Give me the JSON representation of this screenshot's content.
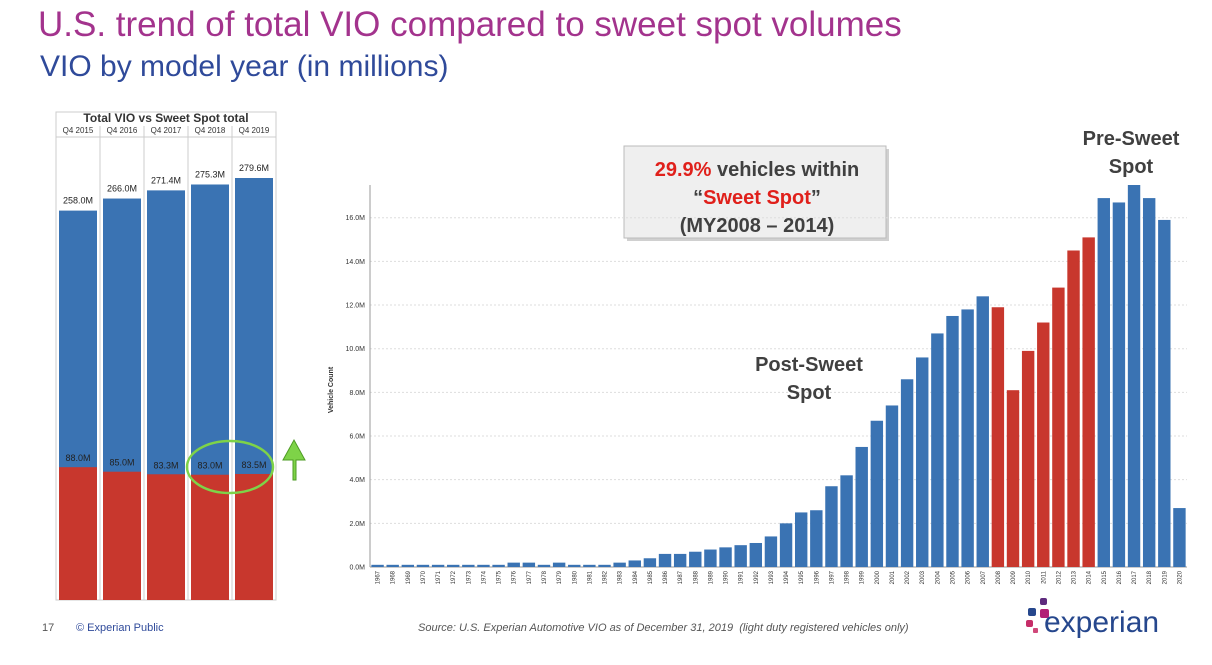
{
  "slide": {
    "title": "U.S. trend of total VIO compared to sweet spot volumes",
    "subtitle": "VIO by model year (in millions)",
    "page": "17",
    "footer": "© Experian Public",
    "source": "Source: U.S. Experian Automotive VIO as of December 31, 2019  (light duty registered vehicles only)",
    "logo": "experian"
  },
  "chart_data": [
    {
      "type": "overlaid_bar",
      "title": "Total VIO vs Sweet Spot total",
      "categories": [
        "Q4 2015",
        "Q4 2016",
        "Q4 2017",
        "Q4 2018",
        "Q4 2019"
      ],
      "series": [
        {
          "color": "#3a73b3",
          "values": [
            258.0,
            266.0,
            271.4,
            275.3,
            279.6
          ],
          "value_labels": [
            "258.0M",
            "266.0M",
            "271.4M",
            "275.3M",
            "279.6M"
          ]
        },
        {
          "color": "#c8372d",
          "values": [
            88.0,
            85.0,
            83.3,
            83.0,
            83.5
          ],
          "value_labels": [
            "88.0M",
            "85.0M",
            "83.3M",
            "83.0M",
            "83.5M"
          ]
        }
      ]
    },
    {
      "type": "bar",
      "ylabel": "Vehicle Count",
      "categories": [
        "1967",
        "1968",
        "1969",
        "1970",
        "1971",
        "1972",
        "1973",
        "1974",
        "1975",
        "1976",
        "1977",
        "1978",
        "1979",
        "1980",
        "1981",
        "1982",
        "1983",
        "1984",
        "1985",
        "1986",
        "1987",
        "1988",
        "1989",
        "1990",
        "1991",
        "1992",
        "1993",
        "1994",
        "1995",
        "1996",
        "1997",
        "1998",
        "1999",
        "2000",
        "2001",
        "2002",
        "2003",
        "2004",
        "2005",
        "2006",
        "2007",
        "2008",
        "2009",
        "2010",
        "2011",
        "2012",
        "2013",
        "2014",
        "2015",
        "2016",
        "2017",
        "2018",
        "2019",
        "2020"
      ],
      "values": [
        0.1,
        0.1,
        0.1,
        0.1,
        0.1,
        0.1,
        0.1,
        0.1,
        0.1,
        0.2,
        0.2,
        0.1,
        0.2,
        0.1,
        0.1,
        0.1,
        0.2,
        0.3,
        0.4,
        0.6,
        0.6,
        0.7,
        0.8,
        0.9,
        1.0,
        1.1,
        1.4,
        2.0,
        2.5,
        2.6,
        3.7,
        4.2,
        5.5,
        6.7,
        7.4,
        8.6,
        9.6,
        10.7,
        11.5,
        11.8,
        12.4,
        11.9,
        8.1,
        9.9,
        11.2,
        12.8,
        14.5,
        15.1,
        16.9,
        16.7,
        17.5,
        16.9,
        15.9,
        2.7
      ],
      "color": "#3a73b3",
      "highlight_color": "#c8372d",
      "highlight_categories": [
        "2008",
        "2009",
        "2010",
        "2011",
        "2012",
        "2013",
        "2014"
      ],
      "ylim": [
        0,
        17.5
      ],
      "yticks": [
        {
          "value": 0,
          "label": "0.0M"
        },
        {
          "value": 2,
          "label": "2.0M"
        },
        {
          "value": 4,
          "label": "4.0M"
        },
        {
          "value": 6,
          "label": "6.0M"
        },
        {
          "value": 8,
          "label": "8.0M"
        },
        {
          "value": 10,
          "label": "10.0M"
        },
        {
          "value": 12,
          "label": "12.0M"
        },
        {
          "value": 14,
          "label": "14.0M"
        },
        {
          "value": 16,
          "label": "16.0M"
        }
      ],
      "grid": true,
      "callout": [
        [
          {
            "text": "29.9%",
            "color": "#e0201b"
          },
          {
            "text": " vehicles within"
          }
        ],
        [
          {
            "text": "“"
          },
          {
            "text": "Sweet Spot",
            "color": "#e0201b"
          },
          {
            "text": "”"
          }
        ],
        [
          {
            "text": "(MY2008 – 2014)"
          }
        ]
      ],
      "annotations": [
        {
          "lines": [
            "Post-Sweet",
            "Spot"
          ]
        },
        {
          "lines": [
            "Pre-Sweet",
            "Spot"
          ]
        }
      ]
    }
  ]
}
